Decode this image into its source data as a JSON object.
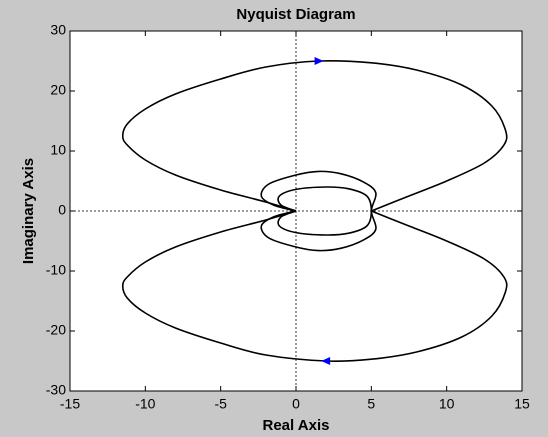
{
  "chart_data": {
    "type": "line",
    "title": "Nyquist Diagram",
    "x_label": "Real Axis",
    "y_label": "Imaginary Axis",
    "xlim": [
      -15,
      15
    ],
    "ylim": [
      -30,
      30
    ],
    "xticks": [
      -15,
      -10,
      -5,
      0,
      5,
      10,
      15
    ],
    "yticks": [
      -30,
      -20,
      -10,
      0,
      10,
      20,
      30
    ],
    "zero_lines": true,
    "series": [
      {
        "color": "#000000",
        "x": [
          0,
          -2,
          -5,
          -8,
          -10,
          -11.2,
          -11.5,
          -11.2,
          -10,
          -8,
          -5,
          -2,
          1.5,
          5,
          8,
          11,
          13,
          13.9,
          13.8,
          12.5,
          10,
          7.5,
          5
        ],
        "values": [
          0,
          1.5,
          3.5,
          6,
          8.5,
          11,
          12.5,
          14.5,
          17,
          19.5,
          22,
          24,
          25,
          24.7,
          23.5,
          21,
          17.5,
          13.5,
          11,
          8,
          5,
          2.5,
          0
        ]
      },
      {
        "color": "#000000",
        "x": [
          5,
          7.5,
          10,
          12.5,
          13.8,
          13.9,
          13,
          11,
          8,
          5,
          2,
          -2,
          -5,
          -8,
          -10,
          -11.2,
          -11.5,
          -11.2,
          -10,
          -8,
          -5,
          -2,
          0
        ],
        "values": [
          0,
          -2.5,
          -5,
          -8,
          -11,
          -13.5,
          -17.5,
          -21,
          -23.5,
          -24.7,
          -25,
          -24,
          -22,
          -19.5,
          -17,
          -14.5,
          -12.5,
          -11,
          -8.5,
          -6,
          -3.5,
          -1.5,
          0
        ]
      },
      {
        "color": "#000000",
        "x": [
          0,
          -1.5,
          -2.3,
          -1.8,
          0,
          1.5,
          3,
          4.5,
          5.3,
          5,
          5.3,
          4.5,
          3,
          1.5,
          0,
          -1.8,
          -2.3,
          -1.5,
          0
        ],
        "values": [
          0,
          1,
          2.5,
          4.5,
          6,
          6.6,
          6.2,
          4.8,
          3,
          0,
          -3,
          -4.8,
          -6.2,
          -6.6,
          -6,
          -4.5,
          -2.5,
          -1,
          0
        ]
      },
      {
        "color": "#000000",
        "x": [
          0,
          -1,
          -1.1,
          0,
          2,
          3.5,
          4.7,
          5,
          4.7,
          3.5,
          2,
          0,
          -1.1,
          -1,
          0
        ],
        "values": [
          0,
          1,
          2.5,
          3.6,
          4,
          3.7,
          2.5,
          0,
          -2.5,
          -3.7,
          -4,
          -3.6,
          -2.5,
          -1,
          0
        ]
      }
    ],
    "arrows": {
      "color": "#0000ff",
      "x": [
        1.5,
        2
      ],
      "values": [
        25,
        -25
      ],
      "direction": [
        "right",
        "left"
      ]
    }
  }
}
